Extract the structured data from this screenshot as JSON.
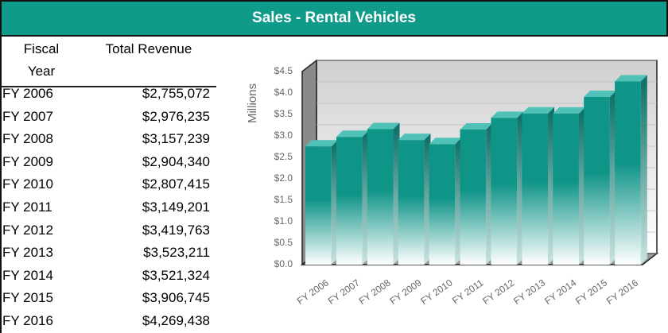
{
  "header": {
    "title": "Sales - Rental Vehicles"
  },
  "table": {
    "headers": [
      "Fiscal Year",
      "Total Revenue"
    ],
    "rows": [
      [
        "FY 2006",
        "$2,755,072"
      ],
      [
        "FY 2007",
        "$2,976,235"
      ],
      [
        "FY 2008",
        "$3,157,239"
      ],
      [
        "FY 2009",
        "$2,904,340"
      ],
      [
        "FY 2010",
        "$2,807,415"
      ],
      [
        "FY 2011",
        "$3,149,201"
      ],
      [
        "FY 2012",
        "$3,419,763"
      ],
      [
        "FY 2013",
        "$3,523,211"
      ],
      [
        "FY 2014",
        "$3,521,324"
      ],
      [
        "FY 2015",
        "$3,906,745"
      ],
      [
        "FY 2016",
        "$4,269,438"
      ]
    ]
  },
  "chart_data": {
    "type": "bar3d",
    "ylabel": "Millions",
    "categories": [
      "FY 2006",
      "FY 2007",
      "FY 2008",
      "FY 2009",
      "FY 2010",
      "FY 2011",
      "FY 2012",
      "FY 2013",
      "FY 2014",
      "FY 2015",
      "FY 2016"
    ],
    "values": [
      2.755072,
      2.976235,
      3.157239,
      2.90434,
      2.807415,
      3.149201,
      3.419763,
      3.523211,
      3.521324,
      3.906745,
      4.269438
    ],
    "color": "#0f9488",
    "ylim": [
      0,
      4.5
    ],
    "yticks": [
      {
        "value": 0,
        "label": "$0.0"
      },
      {
        "value": 0.5,
        "label": "$0.5"
      },
      {
        "value": 1,
        "label": "$1.0"
      },
      {
        "value": 1.5,
        "label": "$1.5"
      },
      {
        "value": 2,
        "label": "$2.0"
      },
      {
        "value": 2.5,
        "label": "$2.5"
      },
      {
        "value": 3,
        "label": "$3.0"
      },
      {
        "value": 3.5,
        "label": "$3.5"
      },
      {
        "value": 4,
        "label": "$4.0"
      },
      {
        "value": 4.5,
        "label": "$4.5"
      }
    ],
    "grid": true
  }
}
